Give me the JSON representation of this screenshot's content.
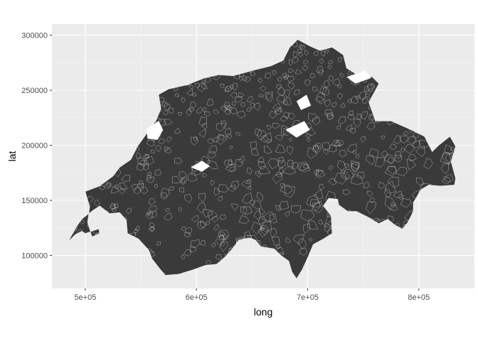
{
  "chart_data": {
    "type": "map",
    "title": "",
    "xlabel": "long",
    "ylabel": "lat",
    "xlim": [
      470000,
      850000
    ],
    "ylim": [
      70000,
      310000
    ],
    "x_ticks": [
      500000,
      600000,
      700000,
      800000
    ],
    "x_tick_labels": [
      "5e+05",
      "6e+05",
      "7e+05",
      "8e+05"
    ],
    "y_ticks": [
      100000,
      150000,
      200000,
      250000,
      300000
    ],
    "y_tick_labels": [
      "100000",
      "150000",
      "200000",
      "250000",
      "300000"
    ],
    "grid": true,
    "legend": "none",
    "colors": {
      "panel_background": "#ebebeb",
      "grid_major": "#ffffff",
      "grid_minor": "#f4f4f4",
      "polygon_fill": "#3a3a3a",
      "polygon_border": "#ffffff"
    },
    "outline": [
      [
        485000,
        113000
      ],
      [
        491000,
        119000
      ],
      [
        497000,
        122000
      ],
      [
        500000,
        120000
      ],
      [
        506000,
        122000
      ],
      [
        512000,
        124000
      ],
      [
        513000,
        120000
      ],
      [
        506000,
        117000
      ],
      [
        502000,
        130000
      ],
      [
        504000,
        144000
      ],
      [
        500000,
        158000
      ],
      [
        513000,
        163000
      ],
      [
        525000,
        172000
      ],
      [
        531000,
        180000
      ],
      [
        541000,
        187000
      ],
      [
        547000,
        199000
      ],
      [
        557000,
        213000
      ],
      [
        564000,
        223000
      ],
      [
        568000,
        233000
      ],
      [
        566000,
        246000
      ],
      [
        575000,
        251000
      ],
      [
        592000,
        255000
      ],
      [
        607000,
        261000
      ],
      [
        620000,
        264000
      ],
      [
        633000,
        263000
      ],
      [
        651000,
        268000
      ],
      [
        667000,
        272000
      ],
      [
        678000,
        277000
      ],
      [
        684000,
        289000
      ],
      [
        691000,
        296000
      ],
      [
        702000,
        290000
      ],
      [
        711000,
        286000
      ],
      [
        722000,
        289000
      ],
      [
        732000,
        282000
      ],
      [
        735000,
        270000
      ],
      [
        746000,
        263000
      ],
      [
        758000,
        262000
      ],
      [
        764000,
        256000
      ],
      [
        755000,
        239000
      ],
      [
        761000,
        222000
      ],
      [
        775000,
        222000
      ],
      [
        793000,
        214000
      ],
      [
        805000,
        208000
      ],
      [
        812000,
        194000
      ],
      [
        818000,
        200000
      ],
      [
        828000,
        208000
      ],
      [
        833000,
        199000
      ],
      [
        829000,
        185000
      ],
      [
        833000,
        170000
      ],
      [
        832000,
        164000
      ],
      [
        818000,
        163000
      ],
      [
        809000,
        164000
      ],
      [
        802000,
        160000
      ],
      [
        795000,
        148000
      ],
      [
        795000,
        140000
      ],
      [
        790000,
        130000
      ],
      [
        785000,
        124000
      ],
      [
        778000,
        128000
      ],
      [
        772000,
        133000
      ],
      [
        764000,
        129000
      ],
      [
        754000,
        135000
      ],
      [
        744000,
        140000
      ],
      [
        736000,
        140000
      ],
      [
        728000,
        146000
      ],
      [
        727000,
        151000
      ],
      [
        719000,
        152000
      ],
      [
        714000,
        145000
      ],
      [
        721000,
        136000
      ],
      [
        722000,
        120000
      ],
      [
        714000,
        115000
      ],
      [
        705000,
        110000
      ],
      [
        700000,
        98000
      ],
      [
        695000,
        87000
      ],
      [
        690000,
        79000
      ],
      [
        686000,
        85000
      ],
      [
        683000,
        95000
      ],
      [
        676000,
        100000
      ],
      [
        670000,
        106000
      ],
      [
        658000,
        108000
      ],
      [
        653000,
        114000
      ],
      [
        648000,
        116000
      ],
      [
        638000,
        114000
      ],
      [
        633000,
        107000
      ],
      [
        626000,
        99000
      ],
      [
        618000,
        92000
      ],
      [
        608000,
        91000
      ],
      [
        597000,
        87000
      ],
      [
        584000,
        83000
      ],
      [
        572000,
        82000
      ],
      [
        567000,
        88000
      ],
      [
        560000,
        97000
      ],
      [
        557000,
        105000
      ],
      [
        548000,
        115000
      ],
      [
        538000,
        120000
      ],
      [
        537000,
        132000
      ],
      [
        531000,
        139000
      ],
      [
        522000,
        138000
      ],
      [
        513000,
        145000
      ],
      [
        507000,
        141000
      ],
      [
        497000,
        133000
      ],
      [
        492000,
        126000
      ]
    ],
    "lakes": [
      [
        [
          555000,
          215000
        ],
        [
          566000,
          222000
        ],
        [
          570000,
          214000
        ],
        [
          565000,
          205000
        ],
        [
          556000,
          206000
        ]
      ],
      [
        [
          595000,
          180000
        ],
        [
          605000,
          186000
        ],
        [
          612000,
          181000
        ],
        [
          605000,
          176000
        ]
      ],
      [
        [
          680000,
          214000
        ],
        [
          697000,
          222000
        ],
        [
          702000,
          214000
        ],
        [
          690000,
          207000
        ]
      ],
      [
        [
          735000,
          262000
        ],
        [
          752000,
          268000
        ],
        [
          757000,
          261000
        ],
        [
          743000,
          256000
        ]
      ],
      [
        [
          690000,
          240000
        ],
        [
          699000,
          246000
        ],
        [
          703000,
          236000
        ],
        [
          694000,
          232000
        ]
      ]
    ]
  }
}
